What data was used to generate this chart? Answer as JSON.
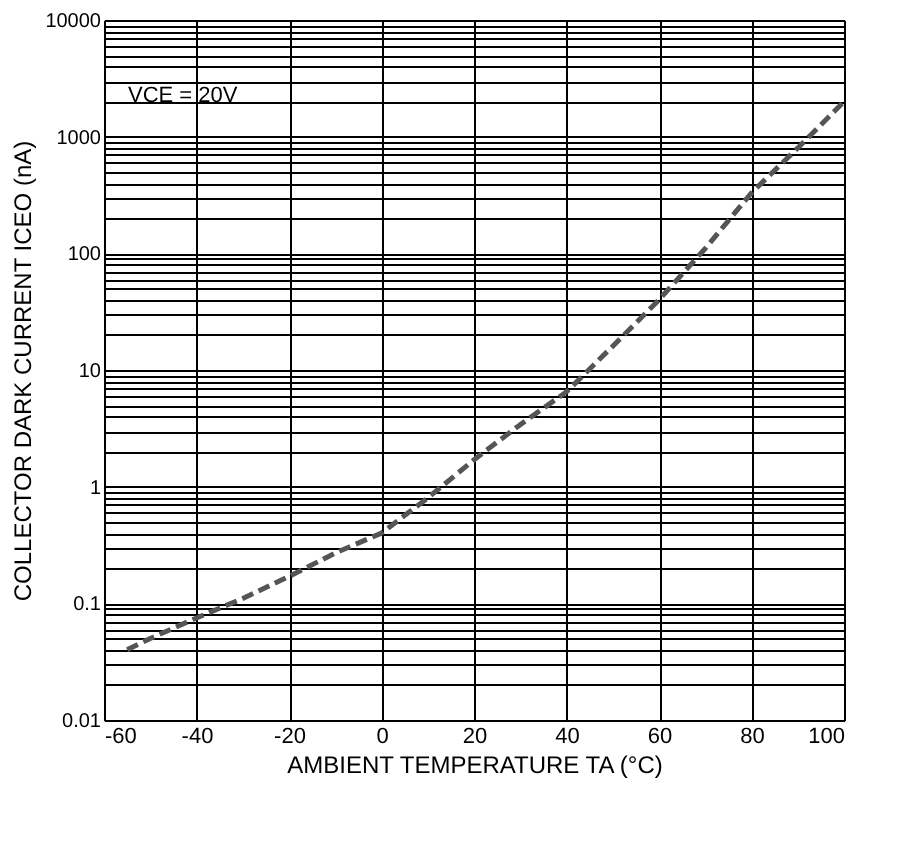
{
  "chart_data": {
    "type": "line",
    "xlabel": "AMBIENT TEMPERATURE TA (°C)",
    "ylabel": "COLLECTOR DARK CURRENT ICEO (nA)",
    "annotations": [
      "VCE = 20V"
    ],
    "x": [
      -55,
      -50,
      -40,
      -30,
      -20,
      -10,
      0,
      10,
      20,
      30,
      40,
      50,
      60,
      70,
      80,
      90,
      100
    ],
    "series": [
      {
        "color": "#555555",
        "values": [
          0.04,
          0.05,
          0.075,
          0.11,
          0.17,
          0.27,
          0.4,
          0.8,
          1.7,
          3.4,
          6.5,
          16,
          40,
          110,
          330,
          800,
          2000
        ]
      }
    ],
    "xlim": [
      -60,
      100
    ],
    "xticks": [
      -60,
      -40,
      -20,
      0,
      20,
      40,
      60,
      80,
      100
    ],
    "ylim": [
      0.01,
      10000
    ],
    "yticks": [
      0.01,
      {
        "value": 0.02,
        "label": null
      },
      {
        "value": 0.03,
        "label": null
      },
      {
        "value": 0.04,
        "label": null
      },
      {
        "value": 0.05,
        "label": null
      },
      {
        "value": 0.06,
        "label": null
      },
      {
        "value": 0.07,
        "label": null
      },
      {
        "value": 0.08,
        "label": null
      },
      {
        "value": 0.09,
        "label": null
      },
      0.1,
      {
        "value": 0.2,
        "label": null
      },
      {
        "value": 0.3,
        "label": null
      },
      {
        "value": 0.4,
        "label": null
      },
      {
        "value": 0.5,
        "label": null
      },
      {
        "value": 0.6,
        "label": null
      },
      {
        "value": 0.7,
        "label": null
      },
      {
        "value": 0.8,
        "label": null
      },
      {
        "value": 0.9,
        "label": null
      },
      1,
      {
        "value": 2,
        "label": null
      },
      {
        "value": 3,
        "label": null
      },
      {
        "value": 4,
        "label": null
      },
      {
        "value": 5,
        "label": null
      },
      {
        "value": 6,
        "label": null
      },
      {
        "value": 7,
        "label": null
      },
      {
        "value": 8,
        "label": null
      },
      {
        "value": 9,
        "label": null
      },
      10,
      {
        "value": 20,
        "label": null
      },
      {
        "value": 30,
        "label": null
      },
      {
        "value": 40,
        "label": null
      },
      {
        "value": 50,
        "label": null
      },
      {
        "value": 60,
        "label": null
      },
      {
        "value": 70,
        "label": null
      },
      {
        "value": 80,
        "label": null
      },
      {
        "value": 90,
        "label": null
      },
      100,
      {
        "value": 200,
        "label": null
      },
      {
        "value": 300,
        "label": null
      },
      {
        "value": 400,
        "label": null
      },
      {
        "value": 500,
        "label": null
      },
      {
        "value": 600,
        "label": null
      },
      {
        "value": 700,
        "label": null
      },
      {
        "value": 800,
        "label": null
      },
      {
        "value": 900,
        "label": null
      },
      1000,
      {
        "value": 2000,
        "label": null
      },
      {
        "value": 3000,
        "label": null
      },
      {
        "value": 4000,
        "label": null
      },
      {
        "value": 5000,
        "label": null
      },
      {
        "value": 6000,
        "label": null
      },
      {
        "value": 7000,
        "label": null
      },
      {
        "value": 8000,
        "label": null
      },
      {
        "value": 9000,
        "label": null
      },
      10000
    ],
    "log": "y",
    "grid": true,
    "marker": "none",
    "line_style": "dashed"
  }
}
